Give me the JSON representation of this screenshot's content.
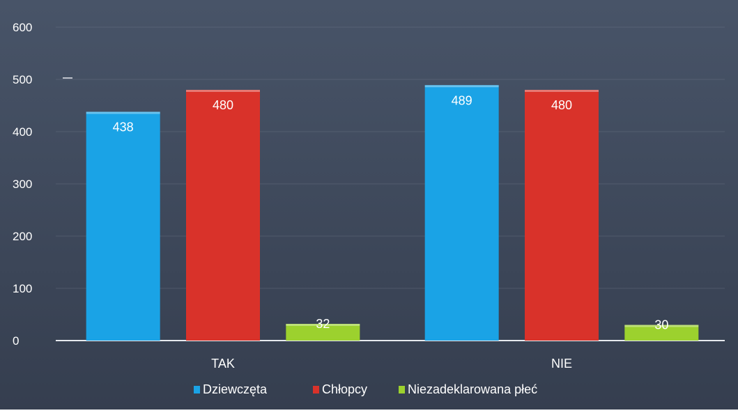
{
  "chart_data": {
    "type": "bar",
    "categories": [
      "TAK",
      "NIE"
    ],
    "series": [
      {
        "name": "Dziewczęta",
        "values": [
          438,
          489
        ],
        "color": "#1aa3e6"
      },
      {
        "name": "Chłopcy",
        "values": [
          480,
          480
        ],
        "color": "#d9322a"
      },
      {
        "name": "Niezadeklarowana płeć",
        "values": [
          32,
          30
        ],
        "color": "#9cd12e"
      }
    ],
    "yticks": [
      "0",
      "100",
      "200",
      "300",
      "400",
      "500",
      "600"
    ],
    "ylim": [
      0,
      600
    ],
    "grid": true,
    "legend_position": "bottom",
    "data_labels": true
  },
  "colors": {
    "background": "#3c4658",
    "axis": "#e6e9ee",
    "text": "#ffffff"
  }
}
